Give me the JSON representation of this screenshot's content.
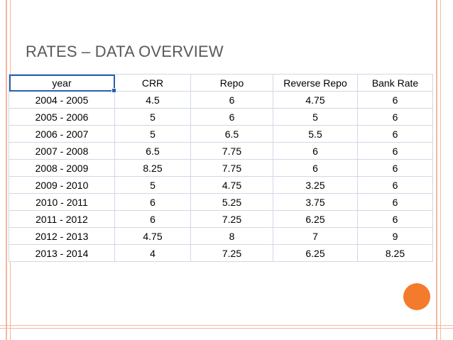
{
  "slide": {
    "title": "Rates – Data Overview"
  },
  "table": {
    "headers": [
      "year",
      "CRR",
      "Repo",
      "Reverse Repo",
      "Bank Rate"
    ],
    "rows": [
      [
        "2004 - 2005",
        "4.5",
        "6",
        "4.75",
        "6"
      ],
      [
        "2005 - 2006",
        "5",
        "6",
        "5",
        "6"
      ],
      [
        "2006 - 2007",
        "5",
        "6.5",
        "5.5",
        "6"
      ],
      [
        "2007 - 2008",
        "6.5",
        "7.75",
        "6",
        "6"
      ],
      [
        "2008 - 2009",
        "8.25",
        "7.75",
        "6",
        "6"
      ],
      [
        "2009 - 2010",
        "5",
        "4.75",
        "3.25",
        "6"
      ],
      [
        "2010 - 2011",
        "6",
        "5.25",
        "3.75",
        "6"
      ],
      [
        "2011 - 2012",
        "6",
        "7.25",
        "6.25",
        "6"
      ],
      [
        "2012 - 2013",
        "4.75",
        "8",
        "7",
        "9"
      ],
      [
        "2013 - 2014",
        "4",
        "7.25",
        "6.25",
        "8.25"
      ]
    ]
  },
  "theme": {
    "frame_color": "#f3b79e",
    "title_color": "#595959",
    "accent_circle_color": "#f47a2c",
    "selection_color": "#2a5fb0",
    "grid_color": "#d0d7e5"
  }
}
